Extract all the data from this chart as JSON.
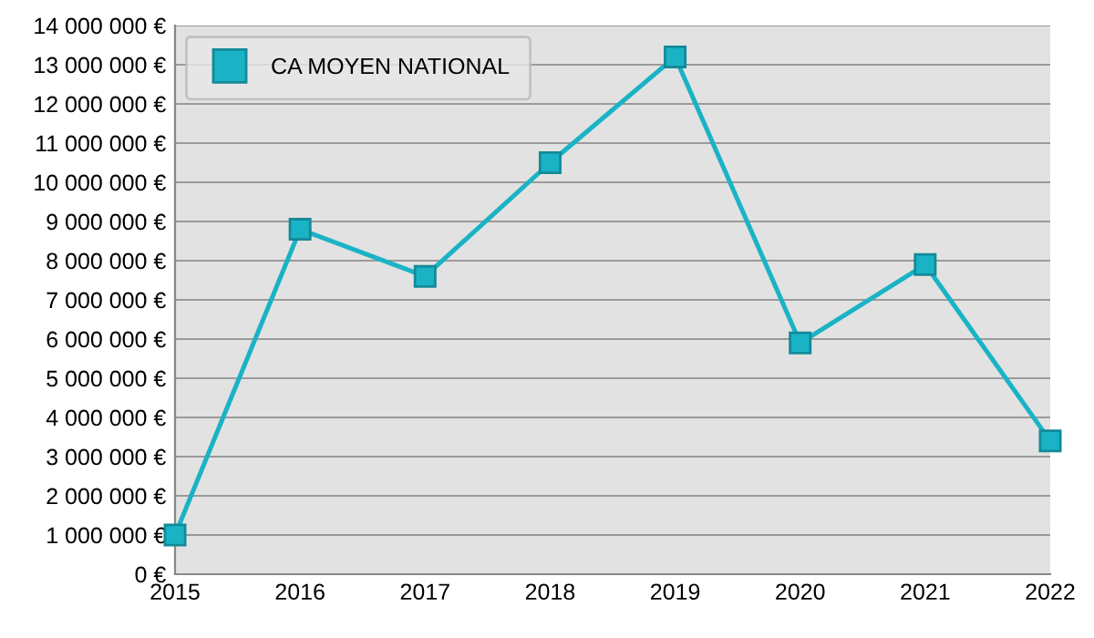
{
  "chart_data": {
    "type": "line",
    "categories": [
      "2015",
      "2016",
      "2017",
      "2018",
      "2019",
      "2020",
      "2021",
      "2022"
    ],
    "series": [
      {
        "name": "CA MOYEN NATIONAL",
        "color": "#1ab3c6",
        "values": [
          1000000,
          8800000,
          7600000,
          10500000,
          13200000,
          5900000,
          7900000,
          3400000
        ]
      }
    ],
    "ylim": [
      0,
      14000000
    ],
    "yticks": [
      {
        "value": 0,
        "label": "0 €"
      },
      {
        "value": 1000000,
        "label": "1 000 000 €"
      },
      {
        "value": 2000000,
        "label": "2 000 000 €"
      },
      {
        "value": 3000000,
        "label": "3 000 000 €"
      },
      {
        "value": 4000000,
        "label": "4 000 000 €"
      },
      {
        "value": 5000000,
        "label": "5 000 000 €"
      },
      {
        "value": 6000000,
        "label": "6 000 000 €"
      },
      {
        "value": 7000000,
        "label": "7 000 000 €"
      },
      {
        "value": 8000000,
        "label": "8 000 000 €"
      },
      {
        "value": 9000000,
        "label": "9 000 000 €"
      },
      {
        "value": 10000000,
        "label": "10 000 000 €"
      },
      {
        "value": 11000000,
        "label": "11 000 000 €"
      },
      {
        "value": 12000000,
        "label": "12 000 000 €"
      },
      {
        "value": 13000000,
        "label": "13 000 000 €"
      },
      {
        "value": 14000000,
        "label": "14 000 000 €"
      }
    ],
    "grid": "y",
    "legend": "top left",
    "marker": "square",
    "line_style": "solid"
  }
}
